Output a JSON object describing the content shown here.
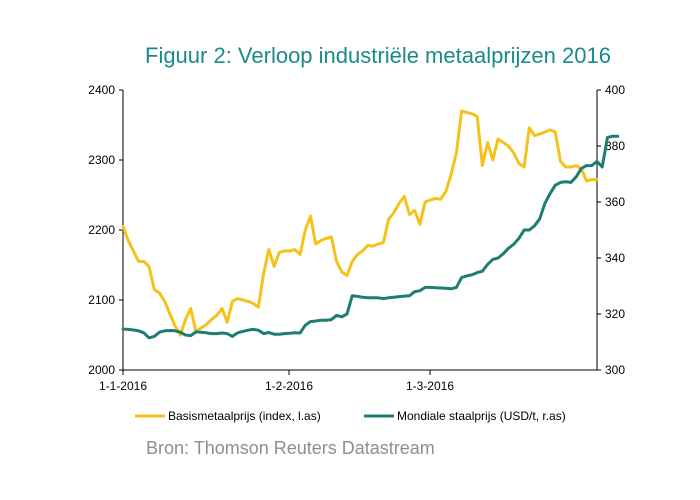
{
  "title": "Figuur 2: Verloop industriële metaalprijzen 2016",
  "source": "Bron: Thomson Reuters Datastream",
  "chart_data": {
    "type": "line",
    "title": "Figuur 2: Verloop industriële metaalprijzen 2016",
    "grid": false,
    "legend_position": "bottom",
    "x_ticks": [
      "1-1-2016",
      "1-2-2016",
      "1-3-2016"
    ],
    "y_left": {
      "ylim": [
        2000,
        2400
      ],
      "ticks": [
        "2000",
        "2100",
        "2200",
        "2300",
        "2400"
      ]
    },
    "y_right": {
      "ylim": [
        300,
        400
      ],
      "ticks": [
        "300",
        "320",
        "340",
        "360",
        "380",
        "400"
      ]
    },
    "series": [
      {
        "name": "Basismetaalprijs (index, l.as)",
        "axis": "left",
        "color": "#f5c21b",
        "values": [
          2205,
          2185,
          2170,
          2155,
          2155,
          2148,
          2115,
          2110,
          2098,
          2080,
          2063,
          2050,
          2072,
          2088,
          2055,
          2060,
          2065,
          2072,
          2078,
          2088,
          2068,
          2098,
          2102,
          2100,
          2098,
          2095,
          2090,
          2138,
          2172,
          2148,
          2168,
          2170,
          2170,
          2172,
          2165,
          2200,
          2220,
          2180,
          2185,
          2188,
          2190,
          2155,
          2140,
          2135,
          2155,
          2165,
          2170,
          2178,
          2177,
          2180,
          2182,
          2215,
          2225,
          2238,
          2248,
          2222,
          2228,
          2208,
          2240,
          2243,
          2245,
          2244,
          2255,
          2280,
          2310,
          2370,
          2368,
          2366,
          2362,
          2292,
          2325,
          2300,
          2330,
          2325,
          2320,
          2310,
          2295,
          2290,
          2346,
          2335,
          2337,
          2340,
          2343,
          2340,
          2298,
          2290,
          2290,
          2292,
          2287,
          2270,
          2272,
          2272
        ]
      },
      {
        "name": "Mondiale staalprijs (USD/t, r.as)",
        "axis": "right",
        "color": "#1d7d72",
        "values": [
          314.6,
          314.5,
          314.3,
          314.0,
          313.3,
          311.5,
          312.0,
          313.5,
          314.0,
          314.1,
          314.0,
          313.5,
          312.5,
          312.3,
          313.6,
          313.5,
          313.3,
          313.0,
          313.0,
          313.2,
          313.0,
          312.0,
          313.3,
          313.8,
          314.2,
          314.5,
          314.2,
          313.0,
          313.4,
          312.8,
          312.8,
          313.0,
          313.1,
          313.3,
          313.2,
          316.0,
          317.3,
          317.5,
          317.8,
          317.8,
          318.0,
          319.5,
          319.0,
          320.0,
          326.5,
          326.3,
          326.0,
          325.8,
          325.8,
          325.8,
          325.5,
          325.8,
          326.0,
          326.2,
          326.4,
          326.5,
          328.0,
          328.3,
          329.5,
          329.5,
          329.4,
          329.3,
          329.2,
          329.0,
          329.5,
          333.0,
          333.6,
          334.0,
          334.8,
          335.3,
          337.7,
          339.5,
          340.0,
          341.5,
          343.5,
          344.9,
          347.0,
          350.0,
          350.0,
          351.5,
          354.0,
          359.5,
          363.0,
          366.0,
          367.0,
          367.2,
          367.0,
          369.0,
          372.0,
          373.0,
          373.0,
          374.5,
          372.5,
          383.0,
          383.5,
          383.5
        ]
      }
    ]
  }
}
